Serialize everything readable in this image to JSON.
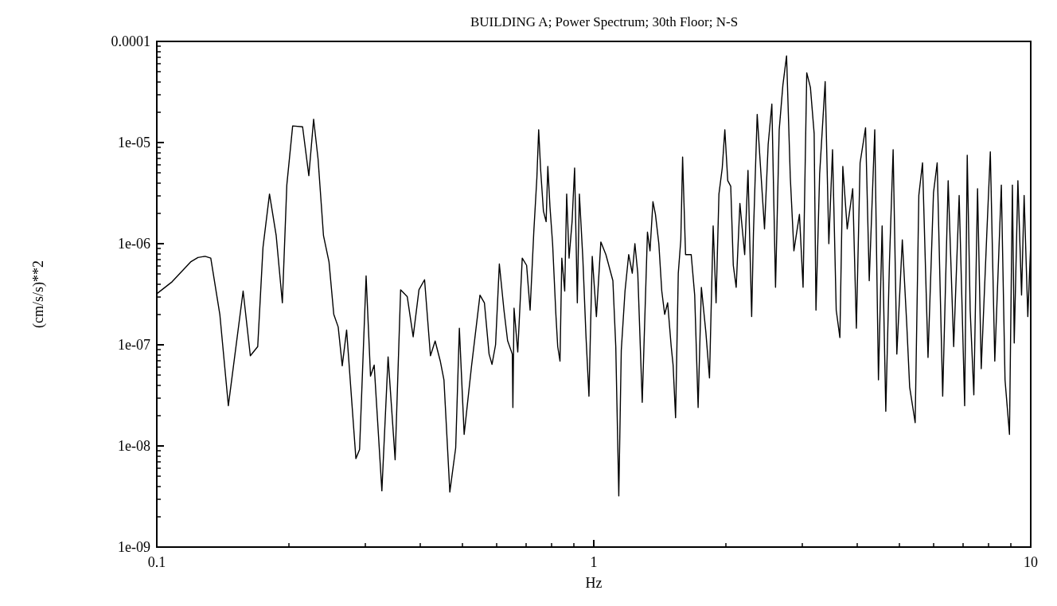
{
  "chart_data": {
    "type": "line",
    "title": "BUILDING A; Power Spectrum; 30th Floor; N-S",
    "xlabel": "Hz",
    "ylabel": "(cm/s/s)**2",
    "log": "xy",
    "grid": false,
    "marker": "none",
    "line_style": "solid",
    "xlim": [
      0.1,
      10
    ],
    "xticks": [
      0.1,
      1,
      10
    ],
    "ylim": [
      1e-09,
      0.0001
    ],
    "yticks": [
      {
        "value": 1e-09,
        "label": "1e-09"
      },
      {
        "value": 1e-08,
        "label": "1e-08"
      },
      {
        "value": 1e-07,
        "label": "1e-07"
      },
      {
        "value": 1e-06,
        "label": "1e-06"
      },
      {
        "value": 1e-05,
        "label": "1e-05"
      },
      0.0001
    ],
    "series": [
      {
        "color": "#000000",
        "x": [
          0.1,
          0.1084,
          0.1195,
          0.1242,
          0.129,
          0.1329,
          0.1394,
          0.1458,
          0.1576,
          0.1637,
          0.1702,
          0.175,
          0.1811,
          0.1876,
          0.1938,
          0.1984,
          0.2046,
          0.2156,
          0.2228,
          0.2285,
          0.2339,
          0.2407,
          0.2478,
          0.2541,
          0.2601,
          0.2657,
          0.2719,
          0.2855,
          0.2911,
          0.3013,
          0.3084,
          0.3144,
          0.3274,
          0.3383,
          0.3511,
          0.3614,
          0.3742,
          0.3861,
          0.3981,
          0.41,
          0.4229,
          0.4335,
          0.4454,
          0.4541,
          0.4684,
          0.4831,
          0.4925,
          0.5051,
          0.525,
          0.549,
          0.562,
          0.576,
          0.585,
          0.596,
          0.608,
          0.623,
          0.635,
          0.651,
          0.653,
          0.657,
          0.67,
          0.686,
          0.702,
          0.715,
          0.729,
          0.741,
          0.748,
          0.756,
          0.767,
          0.778,
          0.785,
          0.794,
          0.805,
          0.819,
          0.827,
          0.837,
          0.845,
          0.858,
          0.867,
          0.878,
          0.892,
          0.904,
          0.917,
          0.927,
          0.944,
          0.96,
          0.975,
          0.992,
          1.014,
          1.038,
          1.066,
          1.106,
          1.123,
          1.141,
          1.156,
          1.179,
          1.202,
          1.225,
          1.242,
          1.261,
          1.291,
          1.327,
          1.345,
          1.366,
          1.384,
          1.409,
          1.431,
          1.453,
          1.476,
          1.504,
          1.519,
          1.539,
          1.561,
          1.582,
          1.597,
          1.622,
          1.671,
          1.702,
          1.733,
          1.763,
          1.805,
          1.84,
          1.876,
          1.905,
          1.934,
          1.968,
          1.995,
          2.026,
          2.058,
          2.086,
          2.118,
          2.16,
          2.215,
          2.254,
          2.298,
          2.32,
          2.366,
          2.398,
          2.459,
          2.507,
          2.556,
          2.606,
          2.657,
          2.709,
          2.762,
          2.817,
          2.871,
          2.956,
          3.013,
          3.072,
          3.132,
          3.194,
          3.225,
          3.288,
          3.385,
          3.451,
          3.519,
          3.588,
          3.658,
          3.715,
          3.802,
          3.914,
          3.99,
          4.069,
          4.188,
          4.27,
          4.396,
          4.482,
          4.57,
          4.659,
          4.75,
          4.843,
          4.938,
          5.083,
          5.203,
          5.284,
          5.439,
          5.545,
          5.654,
          5.82,
          5.991,
          6.108,
          6.288,
          6.472,
          6.663,
          6.858,
          7.06,
          7.156,
          7.268,
          7.41,
          7.556,
          7.704,
          7.93,
          8.082,
          8.274,
          8.565,
          8.733,
          8.94,
          9.079,
          9.167,
          9.346,
          9.528,
          9.658,
          9.847,
          10
        ],
        "values": [
          3.2e-07,
          4.2e-07,
          6.6e-07,
          7.3e-07,
          7.5e-07,
          7.2e-07,
          2e-07,
          2.5e-08,
          3.4e-07,
          7.8e-08,
          9.6e-08,
          9.2e-07,
          3.1e-06,
          1.2e-06,
          2.6e-07,
          3.8e-06,
          1.46e-05,
          1.43e-05,
          4.7e-06,
          1.7e-05,
          6.9e-06,
          1.2e-06,
          6.6e-07,
          2e-07,
          1.5e-07,
          6.2e-08,
          1.4e-07,
          7.5e-09,
          9.2e-09,
          4.8e-07,
          4.9e-08,
          6.3e-08,
          3.6e-09,
          7.6e-08,
          7.3e-09,
          3.5e-07,
          3e-07,
          1.2e-07,
          3.5e-07,
          4.4e-07,
          7.8e-08,
          1.09e-07,
          6.9e-08,
          4.5e-08,
          3.5e-09,
          9.6e-09,
          1.46e-07,
          1.3e-08,
          6.1e-08,
          3.1e-07,
          2.6e-07,
          8.1e-08,
          6.4e-08,
          1e-07,
          6.3e-07,
          2.2e-07,
          1.1e-07,
          8.1e-08,
          2.4e-08,
          2.3e-07,
          8.5e-08,
          7.2e-07,
          6.1e-07,
          2.2e-07,
          1.3e-06,
          4.5e-06,
          1.34e-05,
          5.3e-06,
          2.1e-06,
          1.65e-06,
          5.8e-06,
          2.3e-06,
          1e-06,
          2e-07,
          9.6e-08,
          6.9e-08,
          7.2e-07,
          3.4e-07,
          3.1e-06,
          7.2e-07,
          1.65e-06,
          5.6e-06,
          2.6e-07,
          3.1e-06,
          7.2e-07,
          1.2e-07,
          3.1e-08,
          7.5e-07,
          1.9e-07,
          1.04e-06,
          7.8e-07,
          4.3e-07,
          9.6e-08,
          3.2e-09,
          8.8e-08,
          3.4e-07,
          7.8e-07,
          5.1e-07,
          1e-06,
          5.1e-07,
          2.7e-08,
          1.3e-06,
          8.5e-07,
          2.6e-06,
          1.95e-06,
          1e-06,
          3.4e-07,
          2e-07,
          2.6e-07,
          9.6e-08,
          6.3e-08,
          1.9e-08,
          5.1e-07,
          1.09e-06,
          7.2e-06,
          7.8e-07,
          7.8e-07,
          3.1e-07,
          2.4e-08,
          3.7e-07,
          1.34e-07,
          4.7e-08,
          1.5e-06,
          2.6e-07,
          3.1e-06,
          5.6e-06,
          1.34e-05,
          4.2e-06,
          3.7e-06,
          6.1e-07,
          3.7e-07,
          2.5e-06,
          7.8e-07,
          5.3e-06,
          1.9e-07,
          1.3e-06,
          1.9e-05,
          7.5e-06,
          1.4e-06,
          9.6e-06,
          2.4e-05,
          3.7e-07,
          1.34e-05,
          3.7e-05,
          7.2e-05,
          4.5e-06,
          8.5e-07,
          1.95e-06,
          3.7e-07,
          4.9e-05,
          3.5e-05,
          1.23e-05,
          2.2e-07,
          4.9e-06,
          4e-05,
          1e-06,
          8.5e-06,
          2.2e-07,
          1.18e-07,
          5.8e-06,
          1.4e-06,
          3.5e-06,
          1.46e-07,
          6.3e-06,
          1.4e-05,
          4.3e-07,
          1.34e-05,
          4.5e-08,
          1.5e-06,
          2.2e-08,
          6.6e-07,
          8.5e-06,
          8.1e-08,
          1.09e-06,
          1.6e-07,
          3.8e-08,
          1.7e-08,
          3e-06,
          6.3e-06,
          7.5e-08,
          3.2e-06,
          6.3e-06,
          3.1e-08,
          4.2e-06,
          9.6e-08,
          3e-06,
          2.5e-08,
          7.5e-06,
          2.2e-07,
          3.2e-08,
          3.5e-06,
          5.8e-08,
          1.2e-06,
          8.1e-06,
          6.9e-08,
          3.8e-06,
          4.5e-08,
          1.3e-08,
          3.8e-06,
          1.04e-07,
          4.2e-06,
          3.1e-07,
          3e-06,
          1.9e-07,
          1e-06
        ]
      }
    ]
  }
}
